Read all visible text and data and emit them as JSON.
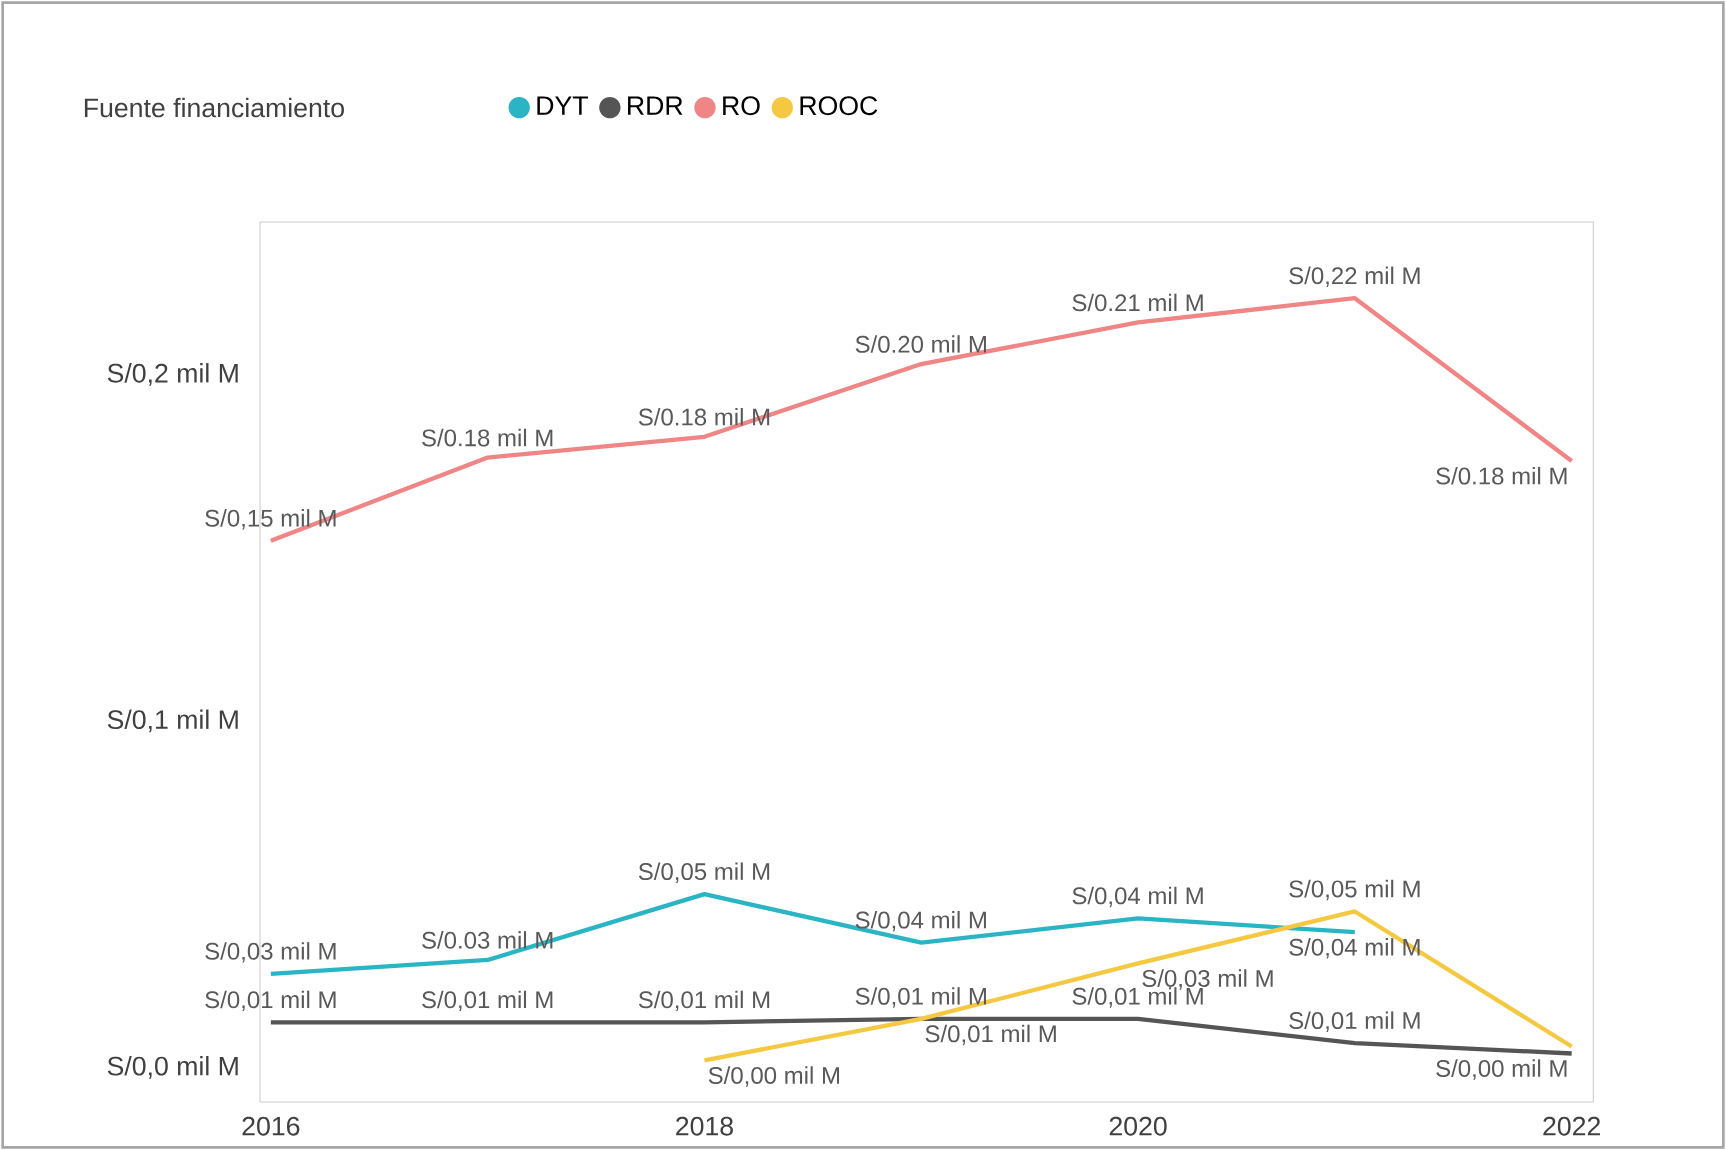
{
  "chart_data": {
    "type": "line",
    "legend_title": "Fuente financiamiento",
    "legend": "top left",
    "x": [
      2016,
      2017,
      2018,
      2019,
      2020,
      2021,
      2022
    ],
    "xlim": [
      2015.95,
      2022.1
    ],
    "xticks": [
      2016,
      2018,
      2020,
      2022
    ],
    "ylim": [
      -0.01,
      0.244
    ],
    "yticks": [
      {
        "value": 0,
        "label": "S/0,0 mil M"
      },
      {
        "value": 0.1,
        "label": "S/0,1 mil M"
      },
      {
        "value": 0.2,
        "label": "S/0,2 mil M"
      }
    ],
    "series": [
      {
        "name": "DYT",
        "color": "#2bb5c4",
        "values": [
          0.027,
          0.031,
          0.05,
          0.036,
          0.043,
          0.039,
          null
        ],
        "value_labels": [
          "S/0,03 mil M",
          "S/0.03 mil M",
          "S/0,05 mil M",
          "S/0,04 mil M",
          "S/0,04 mil M",
          "S/0,04 mil M",
          null
        ]
      },
      {
        "name": "RDR",
        "color": "#555555",
        "values": [
          0.013,
          0.013,
          0.013,
          0.014,
          0.014,
          0.007,
          0.004
        ],
        "value_labels": [
          "S/0,01 mil M",
          "S/0,01 mil M",
          "S/0,01 mil M",
          "S/0,01 mil M",
          "S/0,01 mil M",
          "S/0,01 mil M",
          "S/0,00 mil M"
        ]
      },
      {
        "name": "RO",
        "color": "#ef8585",
        "values": [
          0.152,
          0.176,
          0.182,
          0.203,
          0.215,
          0.222,
          0.175
        ],
        "value_labels": [
          "S/0,15 mil M",
          "S/0.18 mil M",
          "S/0.18 mil M",
          "S/0.20 mil M",
          "S/0.21 mil M",
          "S/0,22 mil M",
          "S/0.18 mil M"
        ]
      },
      {
        "name": "ROOC",
        "color": "#f5c842",
        "values": [
          null,
          null,
          0.002,
          0.014,
          0.03,
          0.045,
          0.006
        ],
        "value_labels": [
          null,
          null,
          "S/0,00 mil M",
          "S/0,01 mil M",
          "S/0,03 mil M",
          "S/0,05 mil M",
          null
        ]
      }
    ]
  }
}
